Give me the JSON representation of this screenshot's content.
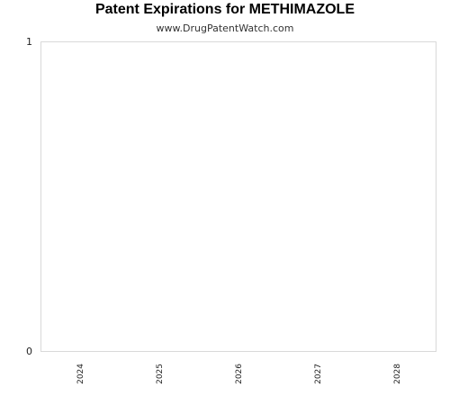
{
  "chart_data": {
    "type": "bar",
    "title": "Patent Expirations for METHIMAZOLE",
    "subtitle": "www.DrugPatentWatch.com",
    "xlabel": "",
    "ylabel": "",
    "categories": [
      "2024",
      "2025",
      "2026",
      "2027",
      "2028"
    ],
    "values": [
      0,
      0,
      0,
      0,
      0
    ],
    "ylim": [
      0,
      1
    ],
    "yticks": [
      "0",
      "1"
    ],
    "grid": false,
    "legend": "none",
    "frame_color": "#d9d9d9",
    "bar_color": "#4a7ebb"
  }
}
